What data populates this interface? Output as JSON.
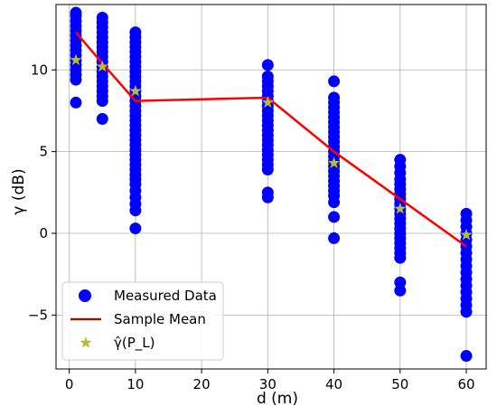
{
  "chart_data": {
    "type": "scatter",
    "xlabel": "d (m)",
    "ylabel": "γ (dB)",
    "xlim": [
      -2,
      63
    ],
    "ylim": [
      -8.3,
      14
    ],
    "xticks": [
      0,
      10,
      20,
      30,
      40,
      50,
      60
    ],
    "yticks": [
      -5,
      0,
      5,
      10
    ],
    "ytick_labels": [
      "−5",
      "0",
      "5",
      "10"
    ],
    "grid": true,
    "legend_position": "lower-left",
    "colors": {
      "measured": "#0000ff",
      "sample_mean": "#ff0000",
      "sample_mean_legend": "#8b1a00",
      "estimate": "#b5bd35"
    },
    "legend": [
      {
        "label": "Measured Data",
        "marker": "circle"
      },
      {
        "label": "Sample Mean",
        "marker": "line"
      },
      {
        "label": "γ̂(P_L)",
        "marker": "star"
      }
    ],
    "series": [
      {
        "name": "Measured Data",
        "kind": "points",
        "points": [
          [
            1,
            13.5
          ],
          [
            1,
            13.3
          ],
          [
            1,
            13.0
          ],
          [
            1,
            12.7
          ],
          [
            1,
            12.4
          ],
          [
            1,
            12.1
          ],
          [
            1,
            11.8
          ],
          [
            1,
            11.5
          ],
          [
            1,
            11.2
          ],
          [
            1,
            10.9
          ],
          [
            1,
            10.6
          ],
          [
            1,
            10.3
          ],
          [
            1,
            10.0
          ],
          [
            1,
            9.7
          ],
          [
            1,
            9.4
          ],
          [
            1,
            8.0
          ],
          [
            5,
            13.2
          ],
          [
            5,
            12.9
          ],
          [
            5,
            12.6
          ],
          [
            5,
            12.3
          ],
          [
            5,
            12.0
          ],
          [
            5,
            11.7
          ],
          [
            5,
            11.4
          ],
          [
            5,
            11.1
          ],
          [
            5,
            10.8
          ],
          [
            5,
            10.5
          ],
          [
            5,
            10.2
          ],
          [
            5,
            9.9
          ],
          [
            5,
            9.6
          ],
          [
            5,
            9.3
          ],
          [
            5,
            9.0
          ],
          [
            5,
            8.7
          ],
          [
            5,
            8.4
          ],
          [
            5,
            8.1
          ],
          [
            5,
            7.0
          ],
          [
            10,
            12.3
          ],
          [
            10,
            12.0
          ],
          [
            10,
            11.7
          ],
          [
            10,
            11.4
          ],
          [
            10,
            11.1
          ],
          [
            10,
            10.8
          ],
          [
            10,
            10.5
          ],
          [
            10,
            10.2
          ],
          [
            10,
            9.9
          ],
          [
            10,
            9.6
          ],
          [
            10,
            9.3
          ],
          [
            10,
            9.0
          ],
          [
            10,
            8.7
          ],
          [
            10,
            8.4
          ],
          [
            10,
            8.1
          ],
          [
            10,
            7.8
          ],
          [
            10,
            7.5
          ],
          [
            10,
            7.2
          ],
          [
            10,
            6.9
          ],
          [
            10,
            6.6
          ],
          [
            10,
            6.3
          ],
          [
            10,
            6.0
          ],
          [
            10,
            5.7
          ],
          [
            10,
            5.4
          ],
          [
            10,
            5.1
          ],
          [
            10,
            4.8
          ],
          [
            10,
            4.5
          ],
          [
            10,
            4.2
          ],
          [
            10,
            3.9
          ],
          [
            10,
            3.6
          ],
          [
            10,
            3.3
          ],
          [
            10,
            3.0
          ],
          [
            10,
            2.6
          ],
          [
            10,
            2.2
          ],
          [
            10,
            1.8
          ],
          [
            10,
            1.4
          ],
          [
            10,
            0.3
          ],
          [
            30,
            10.3
          ],
          [
            30,
            9.6
          ],
          [
            30,
            9.3
          ],
          [
            30,
            9.0
          ],
          [
            30,
            8.7
          ],
          [
            30,
            8.4
          ],
          [
            30,
            8.1
          ],
          [
            30,
            7.8
          ],
          [
            30,
            7.5
          ],
          [
            30,
            7.2
          ],
          [
            30,
            6.9
          ],
          [
            30,
            6.6
          ],
          [
            30,
            6.3
          ],
          [
            30,
            6.0
          ],
          [
            30,
            5.7
          ],
          [
            30,
            5.4
          ],
          [
            30,
            5.1
          ],
          [
            30,
            4.8
          ],
          [
            30,
            4.5
          ],
          [
            30,
            4.2
          ],
          [
            30,
            3.9
          ],
          [
            30,
            2.5
          ],
          [
            30,
            2.2
          ],
          [
            40,
            9.3
          ],
          [
            40,
            8.3
          ],
          [
            40,
            8.0
          ],
          [
            40,
            7.7
          ],
          [
            40,
            7.4
          ],
          [
            40,
            7.1
          ],
          [
            40,
            6.8
          ],
          [
            40,
            6.5
          ],
          [
            40,
            6.2
          ],
          [
            40,
            5.9
          ],
          [
            40,
            5.6
          ],
          [
            40,
            5.3
          ],
          [
            40,
            5.0
          ],
          [
            40,
            4.7
          ],
          [
            40,
            4.4
          ],
          [
            40,
            4.1
          ],
          [
            40,
            3.8
          ],
          [
            40,
            3.5
          ],
          [
            40,
            3.2
          ],
          [
            40,
            2.9
          ],
          [
            40,
            2.6
          ],
          [
            40,
            2.3
          ],
          [
            40,
            1.9
          ],
          [
            40,
            1.0
          ],
          [
            40,
            -0.3
          ],
          [
            50,
            4.5
          ],
          [
            50,
            4.1
          ],
          [
            50,
            3.7
          ],
          [
            50,
            3.3
          ],
          [
            50,
            3.0
          ],
          [
            50,
            2.7
          ],
          [
            50,
            2.4
          ],
          [
            50,
            2.1
          ],
          [
            50,
            1.8
          ],
          [
            50,
            1.5
          ],
          [
            50,
            1.2
          ],
          [
            50,
            0.9
          ],
          [
            50,
            0.6
          ],
          [
            50,
            0.3
          ],
          [
            50,
            0.0
          ],
          [
            50,
            -0.3
          ],
          [
            50,
            -0.6
          ],
          [
            50,
            -0.9
          ],
          [
            50,
            -1.2
          ],
          [
            50,
            -1.5
          ],
          [
            50,
            -3.0
          ],
          [
            50,
            -3.5
          ],
          [
            60,
            1.2
          ],
          [
            60,
            0.8
          ],
          [
            60,
            0.4
          ],
          [
            60,
            0.0
          ],
          [
            60,
            -0.4
          ],
          [
            60,
            -0.8
          ],
          [
            60,
            -1.2
          ],
          [
            60,
            -1.6
          ],
          [
            60,
            -2.0
          ],
          [
            60,
            -2.4
          ],
          [
            60,
            -2.8
          ],
          [
            60,
            -3.2
          ],
          [
            60,
            -3.6
          ],
          [
            60,
            -4.0
          ],
          [
            60,
            -4.4
          ],
          [
            60,
            -4.8
          ],
          [
            60,
            -7.5
          ]
        ]
      },
      {
        "name": "Sample Mean",
        "kind": "line",
        "x": [
          1,
          5,
          10,
          30,
          40,
          50,
          60
        ],
        "y": [
          12.3,
          10.4,
          8.1,
          8.3,
          5.0,
          2.1,
          -0.8
        ]
      },
      {
        "name": "γ̂(P_L)",
        "kind": "stars",
        "x": [
          1,
          5,
          10,
          30,
          40,
          50,
          60
        ],
        "y": [
          10.6,
          10.2,
          8.7,
          8.0,
          4.3,
          1.5,
          -0.1
        ]
      }
    ]
  }
}
